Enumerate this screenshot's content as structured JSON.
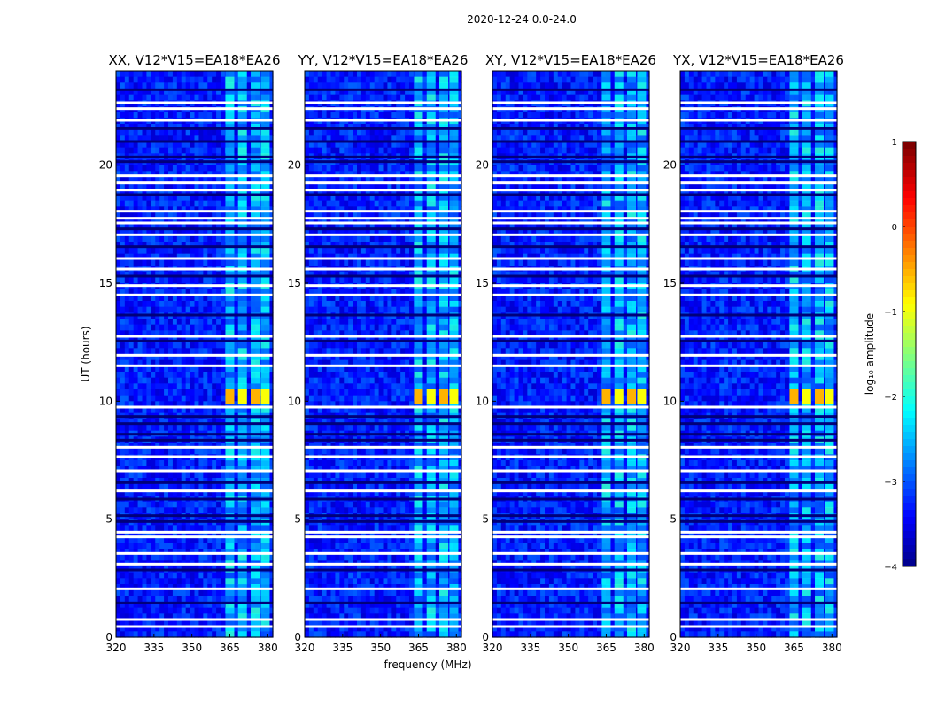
{
  "figure": {
    "suptitle": "2020-12-24 0.0-24.0"
  },
  "chart_data": {
    "type": "heatmap",
    "xlabel": "frequency (MHz)",
    "ylabel": "UT (hours)",
    "xlim": [
      320,
      382
    ],
    "ylim": [
      0,
      24
    ],
    "x_ticks": [
      320,
      335,
      350,
      365,
      380
    ],
    "y_ticks": [
      0,
      5,
      10,
      15,
      20
    ],
    "panels": [
      {
        "title": "XX, V12*V15=EA18*EA26"
      },
      {
        "title": "YY, V12*V15=EA18*EA26"
      },
      {
        "title": "XY, V12*V15=EA18*EA26"
      },
      {
        "title": "YX, V12*V15=EA18*EA26"
      }
    ],
    "colorbar": {
      "label": "log₁₀ amplitude",
      "range": [
        -4,
        1
      ],
      "ticks": [
        "1",
        "0",
        "−1",
        "−2",
        "−3",
        "−4"
      ],
      "tick_values": [
        1,
        0,
        -1,
        -2,
        -3,
        -4
      ],
      "colormap": "jet"
    },
    "rfi_channel_centers_mhz": [
      365,
      370,
      375,
      379
    ],
    "bright_rfi_event": {
      "ut_hours": [
        9.9,
        10.5
      ],
      "freq_mhz": [
        363,
        380
      ],
      "log10_amplitude": -0.5
    },
    "flagged_ut_hours": [
      0.45,
      0.75,
      2.05,
      3.1,
      3.55,
      4.25,
      4.45,
      6.2,
      7.05,
      7.65,
      8.05,
      9.75,
      11.5,
      11.95,
      12.75,
      14.5,
      14.9,
      15.6,
      16.05,
      17.05,
      17.55,
      17.75,
      18.05,
      18.95,
      19.25,
      19.55,
      21.9,
      22.4,
      22.65
    ],
    "dark_ut_hours": [
      1.45,
      2.85,
      4.9,
      5.15,
      5.85,
      6.55,
      8.35,
      8.6,
      9.05,
      9.35,
      12.55,
      13.65,
      15.3,
      16.55,
      17.3,
      18.75,
      20.15,
      20.35,
      21.0,
      21.55,
      23.2
    ]
  }
}
